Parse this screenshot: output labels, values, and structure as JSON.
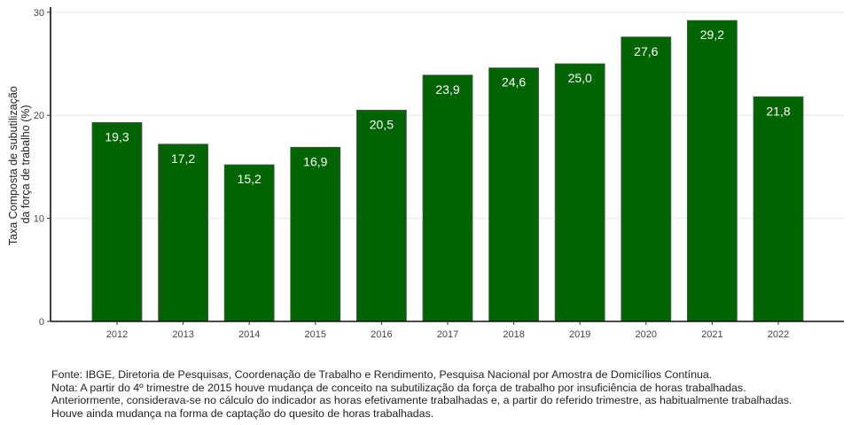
{
  "chart_data": {
    "type": "bar",
    "categories": [
      "2012",
      "2013",
      "2014",
      "2015",
      "2016",
      "2017",
      "2018",
      "2019",
      "2020",
      "2021",
      "2022"
    ],
    "values": [
      19.3,
      17.2,
      15.2,
      16.9,
      20.5,
      23.9,
      24.6,
      25.0,
      27.6,
      29.2,
      21.8
    ],
    "value_labels": [
      "19,3",
      "17,2",
      "15,2",
      "16,9",
      "20,5",
      "23,9",
      "24,6",
      "25,0",
      "27,6",
      "29,2",
      "21,8"
    ],
    "ylabel_lines": [
      "Taxa Composta de subutilização",
      "da força de trabalho (%)"
    ],
    "ylim": [
      0,
      30.5
    ],
    "yticks": [
      0,
      10,
      20,
      30
    ],
    "grid": true,
    "bar_color": "#006400",
    "bar_edge_color": "#555555"
  },
  "notes": [
    "Fonte: IBGE, Diretoria de Pesquisas, Coordenação de Trabalho e Rendimento, Pesquisa Nacional por Amostra de Domicílios Contínua.",
    "Nota: A partir do 4º trimestre de 2015 houve mudança de conceito na subutilização da força de trabalho por insuficiência de horas trabalhadas.",
    "Anteriormente, considerava-se no cálculo do indicador as horas efetivamente trabalhadas e, a partir do referido trimestre, as habitualmente trabalhadas.",
    "Houve ainda mudança na forma de captação do quesito de horas trabalhadas."
  ]
}
